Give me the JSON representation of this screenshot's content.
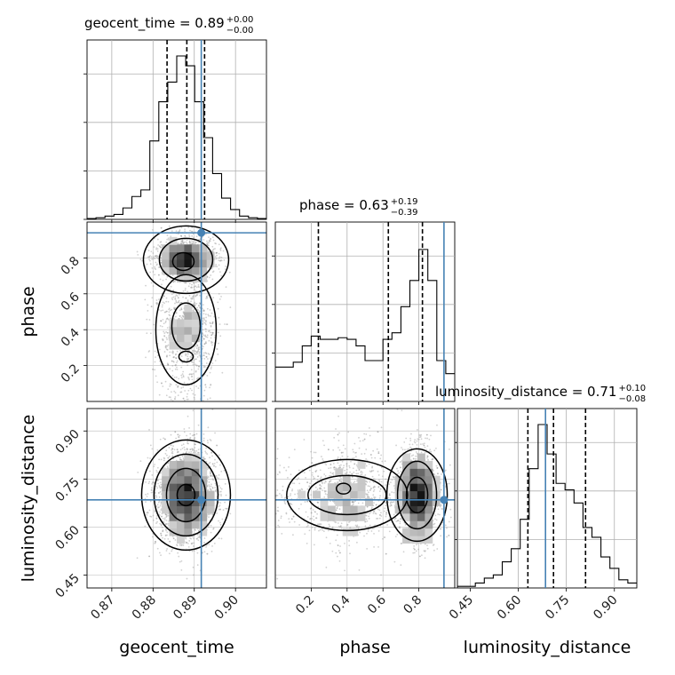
{
  "chart_data": {
    "type": "corner",
    "parameters": [
      "geocent_time",
      "phase",
      "luminosity_distance"
    ],
    "axis_labels": [
      "geocent_time",
      "phase",
      "luminosity_distance"
    ],
    "titles": [
      {
        "name": "geocent_time",
        "value": "0.89",
        "plus": "+0.00",
        "minus": "−0.00"
      },
      {
        "name": "phase",
        "value": "0.63",
        "plus": "+0.19",
        "minus": "−0.39"
      },
      {
        "name": "luminosity_distance",
        "value": "0.71",
        "plus": "+0.10",
        "minus": "−0.08"
      }
    ],
    "ranges": [
      [
        0.864,
        0.9075
      ],
      [
        0.0,
        1.0
      ],
      [
        0.41,
        0.97
      ]
    ],
    "ticks": [
      {
        "values": [
          0.87,
          0.88,
          0.89,
          0.9
        ],
        "labels": [
          "0.87",
          "0.88",
          "0.89",
          "0.90"
        ]
      },
      {
        "values": [
          0.2,
          0.4,
          0.6,
          0.8
        ],
        "labels": [
          "0.2",
          "0.4",
          "0.6",
          "0.8"
        ]
      },
      {
        "values": [
          0.45,
          0.6,
          0.75,
          0.9
        ],
        "labels": [
          "0.45",
          "0.60",
          "0.75",
          "0.90"
        ]
      }
    ],
    "truths": [
      0.8917,
      0.94,
      0.685
    ],
    "quantile_lines": [
      [
        0.8834,
        0.8882,
        0.8925
      ],
      [
        0.24,
        0.63,
        0.82
      ],
      [
        0.63,
        0.71,
        0.81
      ]
    ],
    "histograms": [
      [
        0.5,
        1.0,
        2.0,
        3.0,
        7.0,
        14.0,
        18.0,
        48.0,
        72.0,
        84.0,
        100.0,
        94.0,
        72.0,
        50.0,
        28.0,
        13.0,
        6.0,
        2.0,
        1.0,
        0.5
      ],
      [
        21.0,
        21.0,
        24.0,
        34.0,
        40.0,
        38.0,
        38.0,
        39.0,
        38.0,
        34.0,
        25.0,
        25.0,
        38.0,
        42.0,
        58.0,
        74.0,
        93.0,
        74.0,
        25.0,
        17.0
      ],
      [
        1.0,
        1.0,
        3.0,
        6.0,
        8.0,
        16.0,
        24.0,
        42.0,
        73.0,
        100.0,
        82.0,
        64.0,
        60.0,
        52.0,
        37.0,
        31.0,
        19.0,
        12.0,
        5.0,
        3.0
      ]
    ],
    "scatter_line_color": "#000000",
    "truth_color": "#4682b4",
    "grid": true
  }
}
